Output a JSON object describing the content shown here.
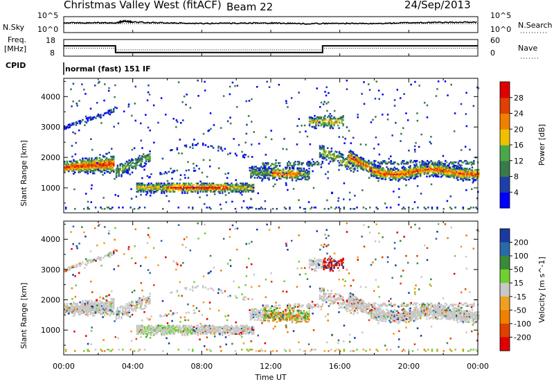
{
  "header": {
    "station": "Christmas Valley West (fitACF)",
    "beam": "Beam 22",
    "date": "24/Sep/2013"
  },
  "strip_labels": {
    "nsky": "N.Sky",
    "nsearch": "N.Search",
    "freq_line1": "Freq.",
    "freq_line2": "[MHz]",
    "nave": "Nave",
    "cpid": "CPID",
    "cpid_value": "normal (fast) 151 IF",
    "nsky_ticks": [
      "10^5",
      "10^0"
    ],
    "nsearch_ticks": [
      "10^5",
      "10^0"
    ],
    "freq_ticks": [
      "18",
      "8"
    ],
    "nave_ticks": [
      "60",
      "0"
    ]
  },
  "colors": {
    "power": [
      "#0000ff",
      "#1f3fa8",
      "#3a7a4a",
      "#4aa84a",
      "#f0c000",
      "#f08000",
      "#e04000",
      "#e00000"
    ],
    "velocity": [
      "#1a3aa0",
      "#2a6aa8",
      "#3a8a3a",
      "#70d030",
      "#c8c8c8",
      "#f0a020",
      "#f08000",
      "#e04000",
      "#e00000"
    ]
  },
  "chart_data": [
    {
      "type": "line",
      "name": "sky-noise-strip",
      "x_range": [
        0,
        24
      ],
      "ylim": [
        0,
        5
      ],
      "y_scale": "log10",
      "series": [
        {
          "x": [
            0,
            2,
            3,
            3.5,
            4,
            6,
            8,
            10,
            12,
            14,
            16,
            18,
            20,
            22,
            24
          ],
          "y": [
            3.0,
            3.1,
            3.0,
            3.6,
            3.3,
            3.0,
            2.9,
            2.9,
            3.0,
            2.8,
            2.9,
            2.8,
            3.1,
            3.2,
            3.3
          ]
        }
      ]
    },
    {
      "type": "line",
      "name": "frequency-nave-strip",
      "x_range": [
        0,
        24
      ],
      "ylim": [
        8,
        18
      ],
      "series": [
        {
          "x": [
            0,
            3,
            3,
            15,
            15,
            24
          ],
          "y": [
            14.2,
            14.2,
            10.2,
            10.2,
            14.2,
            14.2
          ]
        },
        {
          "x": [
            0,
            3,
            3,
            15,
            15,
            24
          ],
          "y": [
            12.8,
            12.8,
            11.8,
            11.8,
            12.8,
            12.8
          ]
        }
      ]
    },
    {
      "type": "heatmap",
      "name": "power-panel",
      "ylabel": "Slant Range [km]",
      "x_range": [
        0,
        24
      ],
      "ylim": [
        180,
        4600
      ],
      "yticks": [
        1000,
        2000,
        3000,
        4000
      ],
      "colorbar_label": "Power [dB]",
      "colorbar_ticks": [
        "4",
        "8",
        "12",
        "16",
        "20",
        "24",
        "28"
      ],
      "colorbar_range": [
        0,
        32
      ]
    },
    {
      "type": "heatmap",
      "name": "velocity-panel",
      "ylabel": "Slant Range [km]",
      "x_range": [
        0,
        24
      ],
      "ylim": [
        180,
        4600
      ],
      "yticks": [
        1000,
        2000,
        3000,
        4000
      ],
      "colorbar_label": "Velocity [m s^-1]",
      "colorbar_ticks": [
        "200",
        "100",
        "50",
        "15",
        "-15",
        "-50",
        "-100",
        "-200"
      ]
    }
  ],
  "xaxis": {
    "ticks": [
      "00:00",
      "04:00",
      "08:00",
      "12:00",
      "16:00",
      "20:00",
      "00:00"
    ],
    "label": "Time UT"
  }
}
